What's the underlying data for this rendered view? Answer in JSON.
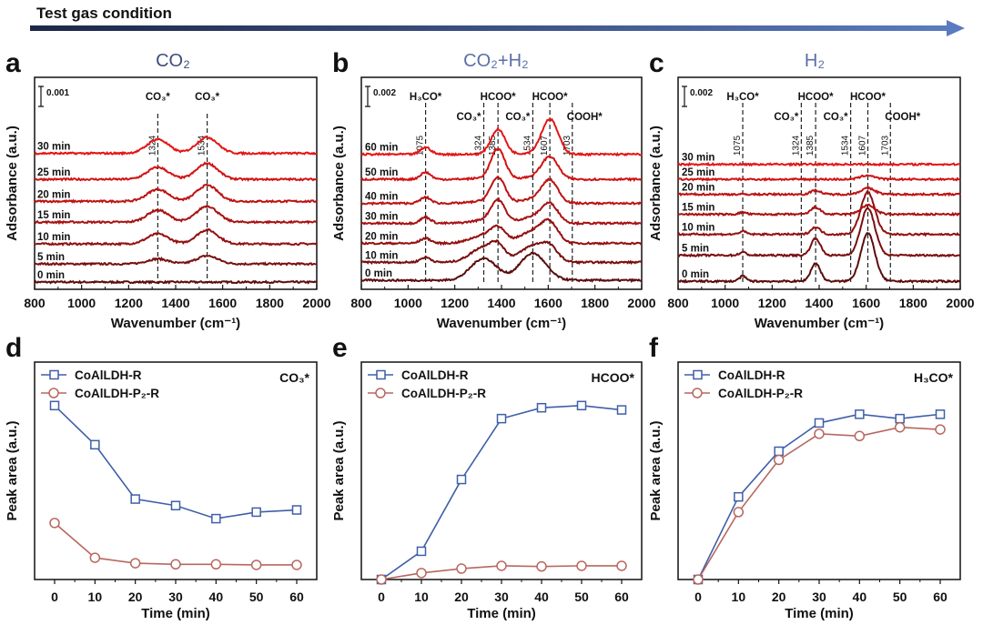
{
  "header": {
    "arrow_label": "Test gas condition",
    "conditions": [
      "CO₂",
      "CO₂+H₂",
      "H₂"
    ],
    "arrow_colors": [
      "#1c2747",
      "#5b7bc0"
    ],
    "condition_color": "#3d4f7c"
  },
  "chart_data": [
    {
      "panel": "a",
      "type": "line",
      "title": "CO₂",
      "xlabel": "Wavenumber (cm⁻¹)",
      "ylabel": "Adsorbance (a.u.)",
      "xlim": [
        800,
        2000
      ],
      "xticks": [
        "800",
        "1000",
        "1200",
        "1400",
        "1600",
        "1800",
        "2000"
      ],
      "scale_bar": "0.001",
      "scale_value": 0.001,
      "ylim": [
        0,
        0.0106
      ],
      "reference_lines": [
        {
          "wavenumber": 1324,
          "label": "1324",
          "species": "CO₃*"
        },
        {
          "wavenumber": 1534,
          "label": "1534",
          "species": "CO₃*"
        }
      ],
      "peak_width": [
        45,
        45
      ],
      "series": [
        {
          "name": "0 min",
          "offset": 0.00036,
          "peaks": [
            0,
            0
          ]
        },
        {
          "name": "5 min",
          "offset": 0.00127,
          "peaks": [
            0.00025,
            0.0004
          ]
        },
        {
          "name": "10 min",
          "offset": 0.00227,
          "peaks": [
            0.0005,
            0.0007
          ]
        },
        {
          "name": "15 min",
          "offset": 0.00336,
          "peaks": [
            0.0006,
            0.0008
          ]
        },
        {
          "name": "20 min",
          "offset": 0.0044,
          "peaks": [
            0.0006,
            0.0008
          ]
        },
        {
          "name": "25 min",
          "offset": 0.0055,
          "peaks": [
            0.0006,
            0.0008
          ]
        },
        {
          "name": "30 min",
          "offset": 0.0068,
          "peaks": [
            0.0007,
            0.0008
          ]
        }
      ]
    },
    {
      "panel": "b",
      "type": "line",
      "title": "CO₂+H₂",
      "xlabel": "Wavenumber (cm⁻¹)",
      "ylabel": "Adsorbance (a.u.)",
      "xlim": [
        800,
        2000
      ],
      "xticks": [
        "800",
        "1000",
        "1200",
        "1400",
        "1600",
        "1800",
        "2000"
      ],
      "scale_bar": "0.002",
      "scale_value": 0.002,
      "ylim": [
        0,
        0.0212
      ],
      "reference_lines": [
        {
          "wavenumber": 1075,
          "label": "1075",
          "species": "H₃CO*"
        },
        {
          "wavenumber": 1324,
          "label": "1324",
          "species": "CO₃*"
        },
        {
          "wavenumber": 1385,
          "label": "1385",
          "species": "HCOO*"
        },
        {
          "wavenumber": 1534,
          "label": "1534",
          "species": "CO₃*"
        },
        {
          "wavenumber": 1607,
          "label": "1607",
          "species": "HCOO*"
        },
        {
          "wavenumber": 1703,
          "label": "1703",
          "species": "COOH*"
        }
      ],
      "peak_width": [
        22,
        55,
        30,
        55,
        35,
        15
      ],
      "series": [
        {
          "name": "0 min",
          "offset": 0.0009,
          "peaks": [
            0,
            0.0022,
            0,
            0.0027,
            0,
            0
          ]
        },
        {
          "name": "10 min",
          "offset": 0.0027,
          "peaks": [
            0.0005,
            0.0015,
            0.0012,
            0.0016,
            0.0012,
            0
          ]
        },
        {
          "name": "20 min",
          "offset": 0.0046,
          "peaks": [
            0.0005,
            0.0008,
            0.0013,
            0.0012,
            0.0018,
            0
          ]
        },
        {
          "name": "30 min",
          "offset": 0.0066,
          "peaks": [
            0.0006,
            0.0003,
            0.0022,
            0.0006,
            0.0018,
            0
          ]
        },
        {
          "name": "40 min",
          "offset": 0.0086,
          "peaks": [
            0.0006,
            0.0002,
            0.0025,
            0.0004,
            0.0022,
            0
          ]
        },
        {
          "name": "50 min",
          "offset": 0.011,
          "peaks": [
            0.0007,
            0.0001,
            0.003,
            0.0002,
            0.0022,
            0
          ]
        },
        {
          "name": "60 min",
          "offset": 0.0135,
          "peaks": [
            0.0007,
            0,
            0.0025,
            0.0001,
            0.0035,
            0
          ]
        }
      ]
    },
    {
      "panel": "c",
      "type": "line",
      "title": "H₂",
      "xlabel": "Wavenumber (cm⁻¹)",
      "ylabel": "Adsorbance (a.u.)",
      "xlim": [
        800,
        2000
      ],
      "xticks": [
        "800",
        "1000",
        "1200",
        "1400",
        "1600",
        "1800",
        "2000"
      ],
      "scale_bar": "0.002",
      "scale_value": 0.002,
      "ylim": [
        0,
        0.0212
      ],
      "reference_lines": [
        {
          "wavenumber": 1075,
          "label": "1075",
          "species": "H₃CO*"
        },
        {
          "wavenumber": 1324,
          "label": "1324",
          "species": "CO₃*"
        },
        {
          "wavenumber": 1385,
          "label": "1385",
          "species": "HCOO*"
        },
        {
          "wavenumber": 1534,
          "label": "1534",
          "species": "CO₃*"
        },
        {
          "wavenumber": 1607,
          "label": "1607",
          "species": "HCOO*"
        },
        {
          "wavenumber": 1703,
          "label": "1703",
          "species": "COOH*"
        }
      ],
      "peak_width": [
        15,
        20,
        20,
        20,
        30,
        15
      ],
      "series": [
        {
          "name": "0 min",
          "offset": 0.0008,
          "peaks": [
            0.0005,
            0,
            0.0018,
            0,
            0.0048,
            0
          ]
        },
        {
          "name": "5 min",
          "offset": 0.0034,
          "peaks": [
            0.0003,
            0,
            0.0017,
            0,
            0.0047,
            0
          ]
        },
        {
          "name": "10 min",
          "offset": 0.0055,
          "peaks": [
            0.0003,
            0,
            0.0007,
            0,
            0.0042,
            0
          ]
        },
        {
          "name": "15 min",
          "offset": 0.0075,
          "peaks": [
            0.0002,
            0,
            0.0007,
            0,
            0.0009,
            0
          ]
        },
        {
          "name": "20 min",
          "offset": 0.0095,
          "peaks": [
            0,
            0,
            0.0004,
            0,
            0.0006,
            0
          ]
        },
        {
          "name": "25 min",
          "offset": 0.011,
          "peaks": [
            0,
            0,
            0,
            0,
            0.0004,
            0
          ]
        },
        {
          "name": "30 min",
          "offset": 0.0125,
          "peaks": [
            0,
            0,
            0,
            0,
            0,
            0
          ]
        }
      ]
    },
    {
      "panel": "d",
      "type": "line",
      "species": "CO₃*",
      "xlabel": "Time (min)",
      "ylabel": "Peak area (a.u.)",
      "x": [
        0,
        10,
        20,
        30,
        40,
        50,
        60
      ],
      "xticks": [
        "0",
        "10",
        "20",
        "30",
        "40",
        "50",
        "60"
      ],
      "ylim": [
        0,
        100
      ],
      "series": [
        {
          "name": "CoAlLDH-R",
          "color": "#3f5fa8",
          "marker": "square",
          "values": [
            80,
            62,
            37,
            34,
            28,
            31,
            32
          ]
        },
        {
          "name": "CoAlLDH-P₂-R",
          "color": "#b8675f",
          "marker": "circle",
          "values": [
            26,
            10,
            7.5,
            7,
            7,
            6.7,
            6.7
          ]
        }
      ]
    },
    {
      "panel": "e",
      "type": "line",
      "species": "HCOO*",
      "xlabel": "Time (min)",
      "ylabel": "Peak area (a.u.)",
      "x": [
        0,
        10,
        20,
        30,
        40,
        50,
        60
      ],
      "xticks": [
        "0",
        "10",
        "20",
        "30",
        "40",
        "50",
        "60"
      ],
      "ylim": [
        0,
        100
      ],
      "series": [
        {
          "name": "CoAlLDH-R",
          "color": "#3f5fa8",
          "marker": "square",
          "values": [
            0,
            13,
            46,
            74,
            79,
            80,
            78
          ]
        },
        {
          "name": "CoAlLDH-P₂-R",
          "color": "#b8675f",
          "marker": "circle",
          "values": [
            0,
            3,
            5,
            6.3,
            6,
            6.3,
            6.3
          ]
        }
      ]
    },
    {
      "panel": "f",
      "type": "line",
      "species": "H₃CO*",
      "xlabel": "Time (min)",
      "ylabel": "Peak area (a.u.)",
      "x": [
        0,
        10,
        20,
        30,
        40,
        50,
        60
      ],
      "xticks": [
        "0",
        "10",
        "20",
        "30",
        "40",
        "50",
        "60"
      ],
      "ylim": [
        0,
        100
      ],
      "series": [
        {
          "name": "CoAlLDH-R",
          "color": "#3f5fa8",
          "marker": "square",
          "values": [
            0,
            38,
            59,
            72,
            76,
            74,
            76
          ]
        },
        {
          "name": "CoAlLDH-P₂-R",
          "color": "#b8675f",
          "marker": "circle",
          "values": [
            0,
            31,
            55,
            67,
            66,
            70,
            69
          ]
        }
      ]
    }
  ],
  "trace_colors": [
    "#5c0c0c",
    "#7a0f0f",
    "#931010",
    "#a81111",
    "#bd1212",
    "#d01313",
    "#e41515"
  ]
}
